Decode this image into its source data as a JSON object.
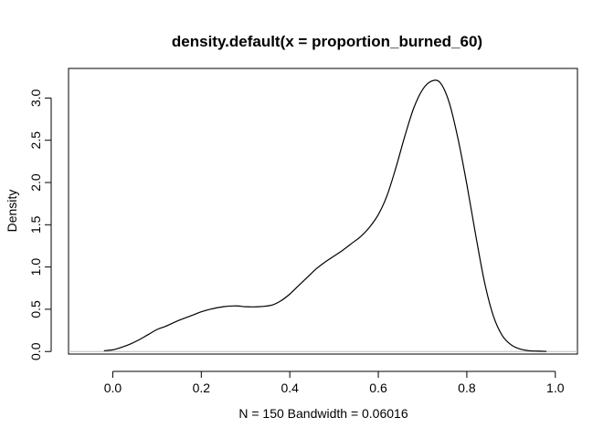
{
  "chart_data": {
    "type": "line",
    "title": "density.default(x = proportion_burned_60)",
    "xlabel": "N = 150   Bandwidth = 0.06016",
    "ylabel": "Density",
    "xlim": [
      -0.1,
      1.05
    ],
    "ylim": [
      -0.03,
      3.35
    ],
    "x_ticks": [
      0.0,
      0.2,
      0.4,
      0.6,
      0.8,
      1.0
    ],
    "x_tick_labels": [
      "0.0",
      "0.2",
      "0.4",
      "0.6",
      "0.8",
      "1.0"
    ],
    "y_ticks": [
      0.0,
      0.5,
      1.0,
      1.5,
      2.0,
      2.5,
      3.0
    ],
    "y_tick_labels": [
      "0.0",
      "0.5",
      "1.0",
      "1.5",
      "2.0",
      "2.5",
      "3.0"
    ],
    "baseline": {
      "y": 0,
      "color": "#bebebe"
    },
    "grid": false,
    "series": [
      {
        "color": "#000000",
        "x": [
          -0.02,
          0.0,
          0.02,
          0.04,
          0.06,
          0.08,
          0.1,
          0.12,
          0.15,
          0.18,
          0.2,
          0.22,
          0.25,
          0.28,
          0.3,
          0.33,
          0.36,
          0.38,
          0.4,
          0.42,
          0.44,
          0.46,
          0.48,
          0.5,
          0.52,
          0.54,
          0.56,
          0.58,
          0.6,
          0.62,
          0.64,
          0.66,
          0.68,
          0.7,
          0.72,
          0.74,
          0.76,
          0.78,
          0.8,
          0.82,
          0.84,
          0.86,
          0.88,
          0.9,
          0.92,
          0.94,
          0.96,
          0.98
        ],
        "y": [
          0.01,
          0.02,
          0.05,
          0.09,
          0.14,
          0.2,
          0.26,
          0.3,
          0.37,
          0.43,
          0.47,
          0.5,
          0.53,
          0.54,
          0.53,
          0.53,
          0.55,
          0.6,
          0.68,
          0.78,
          0.88,
          0.98,
          1.06,
          1.13,
          1.2,
          1.28,
          1.36,
          1.47,
          1.62,
          1.85,
          2.18,
          2.55,
          2.88,
          3.1,
          3.2,
          3.18,
          2.95,
          2.52,
          1.98,
          1.38,
          0.82,
          0.42,
          0.19,
          0.08,
          0.03,
          0.01,
          0.005,
          0.002
        ]
      }
    ]
  }
}
